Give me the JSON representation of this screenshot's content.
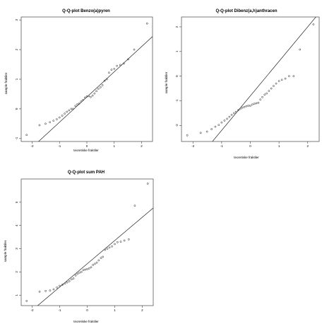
{
  "chart_data": [
    {
      "type": "scatter",
      "title": "Q-Q-plot Benzo(a)pyren",
      "xlabel": "teoretiske fraktiler",
      "ylabel": "sample fraktiler",
      "xlim": [
        -2.4,
        2.4
      ],
      "ylim": [
        -1.1,
        3.1
      ],
      "x_ticks": [
        -2,
        -1,
        0,
        1,
        2
      ],
      "x_tick_labels": [
        "-2",
        "-1",
        "0",
        "1",
        "2"
      ],
      "y_ticks": [
        -1,
        0,
        1,
        2,
        3
      ],
      "y_tick_labels": [
        "-1",
        "0",
        "1",
        "2",
        "3"
      ],
      "x": [
        -2.2,
        -1.73,
        -1.51,
        -1.35,
        -1.22,
        -1.1,
        -1.0,
        -0.9,
        -0.81,
        -0.73,
        -0.65,
        -0.57,
        -0.5,
        -0.42,
        -0.35,
        -0.28,
        -0.21,
        -0.14,
        -0.07,
        0.0,
        0.07,
        0.14,
        0.21,
        0.28,
        0.35,
        0.42,
        0.5,
        0.57,
        0.65,
        0.73,
        0.81,
        0.9,
        1.0,
        1.1,
        1.22,
        1.35,
        1.51,
        1.73,
        2.2
      ],
      "y": [
        -0.88,
        -0.55,
        -0.5,
        -0.45,
        -0.4,
        -0.35,
        -0.29,
        -0.23,
        -0.16,
        -0.1,
        -0.05,
        0.0,
        0.0,
        0.1,
        0.15,
        0.18,
        0.25,
        0.3,
        0.38,
        0.42,
        0.43,
        0.4,
        0.45,
        0.52,
        0.6,
        0.68,
        0.73,
        0.8,
        0.95,
        1.0,
        1.22,
        1.32,
        1.35,
        1.45,
        1.48,
        1.53,
        1.67,
        2.0,
        2.88
      ],
      "line": {
        "intercept": 0.4,
        "slope": 0.85
      },
      "grid": false
    },
    {
      "type": "scatter",
      "title": "Q-Q-plot Dibenz(a,h)anthracen",
      "xlabel": "teoretiske fraktiler",
      "ylabel": "sample fraktiler",
      "xlim": [
        -2.4,
        2.4
      ],
      "ylim": [
        -2.65,
        2.4
      ],
      "x_ticks": [
        -2,
        -1,
        0,
        1,
        2
      ],
      "x_tick_labels": [
        "-2",
        "-1",
        "0",
        "1",
        "2"
      ],
      "y_ticks": [
        -2,
        -1,
        0,
        1,
        2
      ],
      "y_tick_labels": [
        "-2",
        "-1",
        "0",
        "1",
        "2"
      ],
      "x": [
        -2.2,
        -1.73,
        -1.51,
        -1.35,
        -1.22,
        -1.1,
        -1.0,
        -0.9,
        -0.81,
        -0.73,
        -0.65,
        -0.57,
        -0.5,
        -0.42,
        -0.35,
        -0.28,
        -0.21,
        -0.14,
        -0.07,
        0.0,
        0.07,
        0.14,
        0.21,
        0.28,
        0.35,
        0.42,
        0.5,
        0.57,
        0.65,
        0.73,
        0.81,
        0.9,
        1.0,
        1.1,
        1.22,
        1.35,
        1.51,
        1.73,
        2.2
      ],
      "y": [
        -2.4,
        -2.3,
        -2.25,
        -2.15,
        -2.05,
        -1.98,
        -1.88,
        -1.8,
        -1.73,
        -1.65,
        -1.57,
        -1.5,
        -1.45,
        -1.38,
        -1.33,
        -1.28,
        -1.25,
        -1.22,
        -1.2,
        -1.2,
        -1.15,
        -1.12,
        -1.1,
        -1.08,
        -0.95,
        -0.85,
        -0.75,
        -0.7,
        -0.6,
        -0.5,
        -0.4,
        -0.3,
        -0.2,
        -0.15,
        -0.1,
        0.0,
        0.0,
        1.08,
        2.1
      ],
      "line": {
        "intercept": -0.8,
        "slope": 1.4
      },
      "grid": false
    },
    {
      "type": "scatter",
      "title": "Q-Q-plot sum PAH",
      "xlabel": "teoretiske fraktiler",
      "ylabel": "sample fraktiler",
      "xlim": [
        -2.4,
        2.4
      ],
      "ylim": [
        0.55,
        6.0
      ],
      "x_ticks": [
        -2,
        -1,
        0,
        1,
        2
      ],
      "x_tick_labels": [
        "-2",
        "-1",
        "0",
        "1",
        "2"
      ],
      "y_ticks": [
        1,
        2,
        3,
        4,
        5
      ],
      "y_tick_labels": [
        "1",
        "2",
        "3",
        "4",
        "5"
      ],
      "x": [
        -2.2,
        -1.73,
        -1.51,
        -1.35,
        -1.22,
        -1.1,
        -1.0,
        -0.9,
        -0.81,
        -0.73,
        -0.65,
        -0.57,
        -0.5,
        -0.42,
        -0.35,
        -0.28,
        -0.21,
        -0.14,
        -0.07,
        0.0,
        0.07,
        0.14,
        0.21,
        0.28,
        0.35,
        0.42,
        0.5,
        0.57,
        0.65,
        0.73,
        0.81,
        0.9,
        1.0,
        1.1,
        1.22,
        1.35,
        1.51,
        1.73,
        2.2
      ],
      "y": [
        0.75,
        1.15,
        1.18,
        1.2,
        1.25,
        1.33,
        1.4,
        1.45,
        1.5,
        1.55,
        1.6,
        1.68,
        1.72,
        1.85,
        1.92,
        1.97,
        2.0,
        2.08,
        2.1,
        2.12,
        2.15,
        2.2,
        2.3,
        2.35,
        2.4,
        2.5,
        2.6,
        2.65,
        2.95,
        3.0,
        3.05,
        3.1,
        3.2,
        3.28,
        3.3,
        3.35,
        3.4,
        4.85,
        5.8
      ],
      "line": {
        "intercept": 2.35,
        "slope": 1.0
      },
      "grid": false
    }
  ]
}
